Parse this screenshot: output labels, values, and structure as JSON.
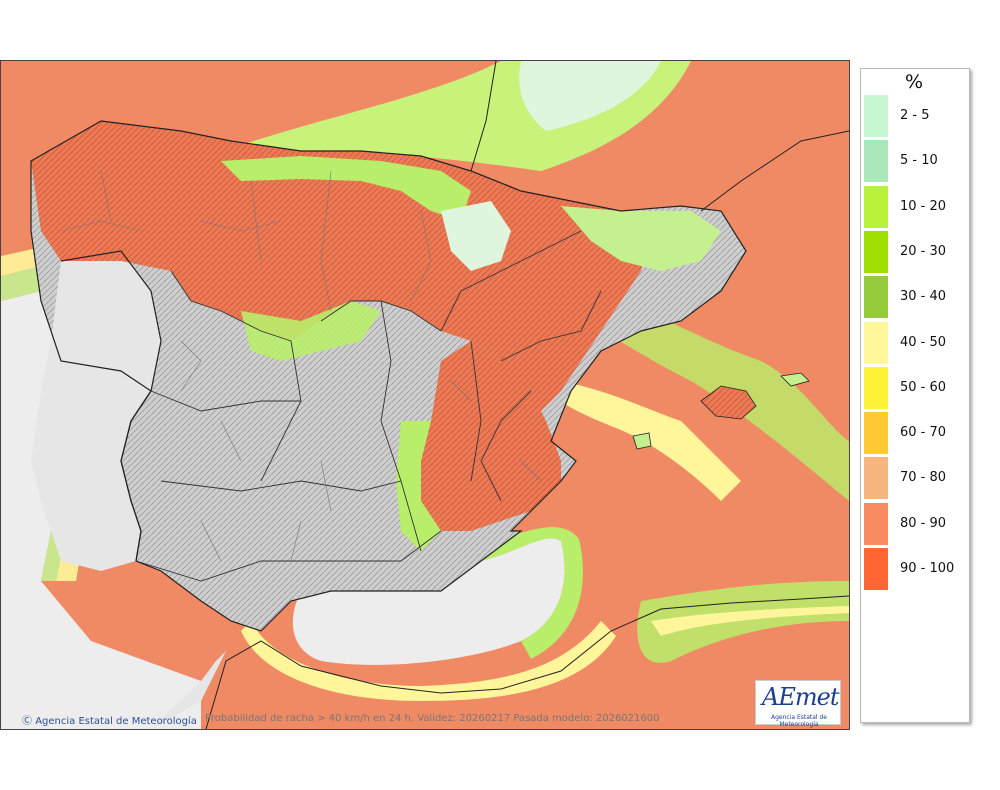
{
  "legend": {
    "unit": "%",
    "items": [
      {
        "label": "2 - 5",
        "color": "#c8f7d2"
      },
      {
        "label": "5 - 10",
        "color": "#a9e8b8"
      },
      {
        "label": "10 - 20",
        "color": "#b9f23a"
      },
      {
        "label": "20 - 30",
        "color": "#9fe000"
      },
      {
        "label": "30 - 40",
        "color": "#96cc3c"
      },
      {
        "label": "40 - 50",
        "color": "#fff79a"
      },
      {
        "label": "50 - 60",
        "color": "#fff33a"
      },
      {
        "label": "60 - 70",
        "color": "#ffc933"
      },
      {
        "label": "70 - 80",
        "color": "#f7b57e"
      },
      {
        "label": "80 - 90",
        "color": "#f78a5f"
      },
      {
        "label": "90 - 100",
        "color": "#ff6633"
      }
    ]
  },
  "footer": {
    "credit": "Agencia Estatal de Meteorología",
    "caption": "Probabilidad de racha > 40 km/h en 24 h. Validez: 20260217 Pasada modelo: 2026021600"
  },
  "logo": {
    "word": "AEmet",
    "sub": "Agencia Estatal de Meteorología"
  },
  "colors": {
    "sea_high": "#f08a64",
    "land_low": "#d8d8d8",
    "border": "#222222"
  }
}
